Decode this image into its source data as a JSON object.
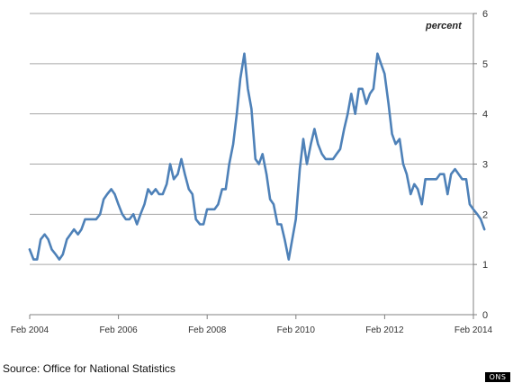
{
  "chart_data": {
    "type": "line",
    "unit_label": "percent",
    "ylim": [
      0,
      6
    ],
    "y_ticks": [
      "0",
      "1",
      "2",
      "3",
      "4",
      "5",
      "6"
    ],
    "x_ticks": [
      {
        "label": "Feb 2004",
        "year": 2004.083
      },
      {
        "label": "Feb 2006",
        "year": 2006.083
      },
      {
        "label": "Feb 2008",
        "year": 2008.083
      },
      {
        "label": "Feb 2010",
        "year": 2010.083
      },
      {
        "label": "Feb 2012",
        "year": 2012.083
      },
      {
        "label": "Feb 2014",
        "year": 2014.083
      }
    ],
    "grid": true,
    "series": [
      {
        "color": "#4e81b8",
        "points": [
          [
            2004.08,
            1.3
          ],
          [
            2004.17,
            1.1
          ],
          [
            2004.25,
            1.1
          ],
          [
            2004.33,
            1.5
          ],
          [
            2004.42,
            1.6
          ],
          [
            2004.5,
            1.5
          ],
          [
            2004.58,
            1.3
          ],
          [
            2004.67,
            1.2
          ],
          [
            2004.75,
            1.1
          ],
          [
            2004.83,
            1.2
          ],
          [
            2004.92,
            1.5
          ],
          [
            2005.0,
            1.6
          ],
          [
            2005.08,
            1.7
          ],
          [
            2005.17,
            1.6
          ],
          [
            2005.25,
            1.7
          ],
          [
            2005.33,
            1.9
          ],
          [
            2005.42,
            1.9
          ],
          [
            2005.5,
            1.9
          ],
          [
            2005.58,
            1.9
          ],
          [
            2005.67,
            2.0
          ],
          [
            2005.75,
            2.3
          ],
          [
            2005.83,
            2.4
          ],
          [
            2005.92,
            2.5
          ],
          [
            2006.0,
            2.4
          ],
          [
            2006.08,
            2.2
          ],
          [
            2006.17,
            2.0
          ],
          [
            2006.25,
            1.9
          ],
          [
            2006.33,
            1.9
          ],
          [
            2006.42,
            2.0
          ],
          [
            2006.5,
            1.8
          ],
          [
            2006.58,
            2.0
          ],
          [
            2006.67,
            2.2
          ],
          [
            2006.75,
            2.5
          ],
          [
            2006.83,
            2.4
          ],
          [
            2006.92,
            2.5
          ],
          [
            2007.0,
            2.4
          ],
          [
            2007.08,
            2.4
          ],
          [
            2007.17,
            2.6
          ],
          [
            2007.25,
            3.0
          ],
          [
            2007.33,
            2.7
          ],
          [
            2007.42,
            2.8
          ],
          [
            2007.5,
            3.1
          ],
          [
            2007.58,
            2.8
          ],
          [
            2007.67,
            2.5
          ],
          [
            2007.75,
            2.4
          ],
          [
            2007.83,
            1.9
          ],
          [
            2007.92,
            1.8
          ],
          [
            2008.0,
            1.8
          ],
          [
            2008.08,
            2.1
          ],
          [
            2008.17,
            2.1
          ],
          [
            2008.25,
            2.1
          ],
          [
            2008.33,
            2.2
          ],
          [
            2008.42,
            2.5
          ],
          [
            2008.5,
            2.5
          ],
          [
            2008.58,
            3.0
          ],
          [
            2008.67,
            3.4
          ],
          [
            2008.75,
            4.0
          ],
          [
            2008.83,
            4.7
          ],
          [
            2008.92,
            5.2
          ],
          [
            2009.0,
            4.5
          ],
          [
            2009.08,
            4.1
          ],
          [
            2009.17,
            3.1
          ],
          [
            2009.25,
            3.0
          ],
          [
            2009.33,
            3.2
          ],
          [
            2009.42,
            2.8
          ],
          [
            2009.5,
            2.3
          ],
          [
            2009.58,
            2.2
          ],
          [
            2009.67,
            1.8
          ],
          [
            2009.75,
            1.8
          ],
          [
            2009.83,
            1.5
          ],
          [
            2009.92,
            1.1
          ],
          [
            2010.0,
            1.5
          ],
          [
            2010.08,
            1.9
          ],
          [
            2010.17,
            2.9
          ],
          [
            2010.25,
            3.5
          ],
          [
            2010.33,
            3.0
          ],
          [
            2010.42,
            3.4
          ],
          [
            2010.5,
            3.7
          ],
          [
            2010.58,
            3.4
          ],
          [
            2010.67,
            3.2
          ],
          [
            2010.75,
            3.1
          ],
          [
            2010.83,
            3.1
          ],
          [
            2010.92,
            3.1
          ],
          [
            2011.0,
            3.2
          ],
          [
            2011.08,
            3.3
          ],
          [
            2011.17,
            3.7
          ],
          [
            2011.25,
            4.0
          ],
          [
            2011.33,
            4.4
          ],
          [
            2011.42,
            4.0
          ],
          [
            2011.5,
            4.5
          ],
          [
            2011.58,
            4.5
          ],
          [
            2011.67,
            4.2
          ],
          [
            2011.75,
            4.4
          ],
          [
            2011.83,
            4.5
          ],
          [
            2011.92,
            5.2
          ],
          [
            2012.0,
            5.0
          ],
          [
            2012.08,
            4.8
          ],
          [
            2012.17,
            4.2
          ],
          [
            2012.25,
            3.6
          ],
          [
            2012.33,
            3.4
          ],
          [
            2012.42,
            3.5
          ],
          [
            2012.5,
            3.0
          ],
          [
            2012.58,
            2.8
          ],
          [
            2012.67,
            2.4
          ],
          [
            2012.75,
            2.6
          ],
          [
            2012.83,
            2.5
          ],
          [
            2012.92,
            2.2
          ],
          [
            2013.0,
            2.7
          ],
          [
            2013.08,
            2.7
          ],
          [
            2013.17,
            2.7
          ],
          [
            2013.25,
            2.7
          ],
          [
            2013.33,
            2.8
          ],
          [
            2013.42,
            2.8
          ],
          [
            2013.5,
            2.4
          ],
          [
            2013.58,
            2.8
          ],
          [
            2013.67,
            2.9
          ],
          [
            2013.75,
            2.8
          ],
          [
            2013.83,
            2.7
          ],
          [
            2013.92,
            2.7
          ],
          [
            2014.0,
            2.2
          ],
          [
            2014.08,
            2.1
          ],
          [
            2014.17,
            2.0
          ],
          [
            2014.25,
            1.9
          ],
          [
            2014.33,
            1.7
          ]
        ]
      }
    ]
  },
  "footer": {
    "source": "Source: Office for National Statistics",
    "logo_text": "ONS"
  }
}
